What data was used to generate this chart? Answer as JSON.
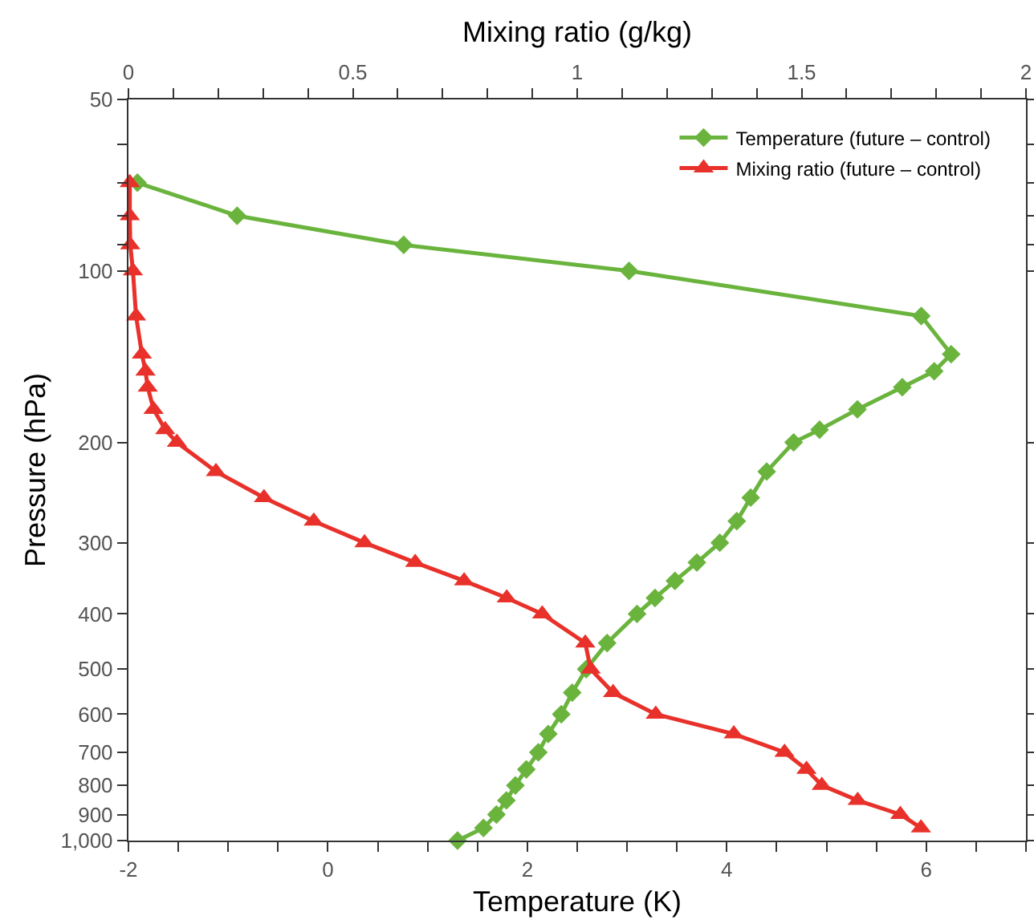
{
  "chart_data": {
    "type": "line",
    "xlabel": "Temperature (K)",
    "x2label": "Mixing ratio (g/kg)",
    "ylabel": "Pressure (hPa)",
    "xlim": [
      -2,
      7
    ],
    "xticks": [
      -2,
      {
        "value": -1.5,
        "label": null
      },
      {
        "value": -1,
        "label": null
      },
      {
        "value": -0.5,
        "label": null
      },
      0,
      {
        "value": 0.5,
        "label": null
      },
      {
        "value": 1,
        "label": null
      },
      {
        "value": 1.5,
        "label": null
      },
      2,
      {
        "value": 2.5,
        "label": null
      },
      {
        "value": 3,
        "label": null
      },
      {
        "value": 3.5,
        "label": null
      },
      4,
      {
        "value": 4.5,
        "label": null
      },
      {
        "value": 5,
        "label": null
      },
      {
        "value": 5.5,
        "label": null
      },
      6,
      {
        "value": 6.5,
        "label": null
      },
      {
        "value": 7,
        "label": null
      }
    ],
    "x2lim": [
      0,
      2
    ],
    "x2ticks": [
      0,
      {
        "value": 0.1,
        "label": null
      },
      {
        "value": 0.2,
        "label": null
      },
      {
        "value": 0.3,
        "label": null
      },
      {
        "value": 0.4,
        "label": null
      },
      0.5,
      {
        "value": 0.6,
        "label": null
      },
      {
        "value": 0.7,
        "label": null
      },
      {
        "value": 0.8,
        "label": null
      },
      {
        "value": 0.9,
        "label": null
      },
      1,
      {
        "value": 1.1,
        "label": null
      },
      {
        "value": 1.2,
        "label": null
      },
      {
        "value": 1.3,
        "label": null
      },
      {
        "value": 1.4,
        "label": null
      },
      1.5,
      {
        "value": 1.6,
        "label": null
      },
      {
        "value": 1.7,
        "label": null
      },
      {
        "value": 1.8,
        "label": null
      },
      {
        "value": 1.9,
        "label": null
      },
      2
    ],
    "ylim": [
      1000,
      50
    ],
    "yticks": [
      50,
      {
        "value": 60,
        "label": null
      },
      {
        "value": 70,
        "label": null
      },
      {
        "value": 80,
        "label": null
      },
      {
        "value": 90,
        "label": null
      },
      100,
      200,
      300,
      400,
      500,
      600,
      700,
      800,
      900,
      {
        "value": 1000,
        "label": "1,000"
      }
    ],
    "log": "y",
    "grid": false,
    "legend": "top right",
    "line_style": "solid",
    "series": [
      {
        "name": "Temperature (future – control)",
        "color": "#6ab43e",
        "marker": "diamond",
        "x": [
          -1.91,
          -0.91,
          0.76,
          3.02,
          5.95,
          6.25,
          6.08,
          5.76,
          5.31,
          4.93,
          4.67,
          4.4,
          4.24,
          4.1,
          3.93,
          3.7,
          3.48,
          3.28,
          3.1,
          2.8,
          2.59,
          2.45,
          2.34,
          2.21,
          2.11,
          1.99,
          1.88,
          1.79,
          1.69,
          1.56,
          1.3
        ],
        "values": [
          70,
          80,
          90,
          100,
          120,
          140,
          150,
          160,
          175,
          190,
          200,
          225,
          250,
          275,
          300,
          325,
          350,
          375,
          400,
          450,
          500,
          550,
          600,
          650,
          700,
          750,
          800,
          850,
          900,
          950,
          1000
        ]
      },
      {
        "name": "Mixing ratio (future – control)",
        "color": "#e8312a",
        "marker": "triangle",
        "axis": "x2",
        "x": [
          0.003,
          0.003,
          0.004,
          0.01,
          0.017,
          0.03,
          0.038,
          0.043,
          0.056,
          0.082,
          0.108,
          0.195,
          0.302,
          0.413,
          0.526,
          0.639,
          0.748,
          0.843,
          0.922,
          1.018,
          1.03,
          1.08,
          1.175,
          1.349,
          1.462,
          1.511,
          1.545,
          1.625,
          1.72,
          1.766
        ],
        "values": [
          70,
          80,
          90,
          100,
          120,
          140,
          150,
          160,
          175,
          190,
          200,
          225,
          250,
          275,
          300,
          325,
          350,
          375,
          400,
          450,
          500,
          550,
          600,
          650,
          700,
          750,
          800,
          850,
          900,
          950
        ]
      }
    ]
  }
}
